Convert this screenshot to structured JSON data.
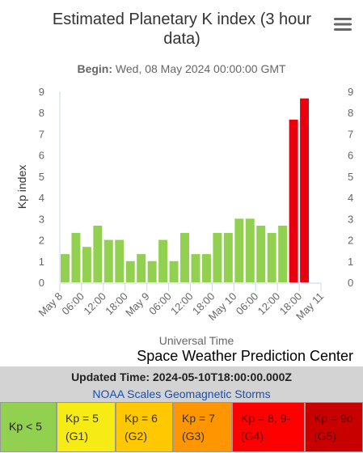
{
  "chart_data": {
    "type": "bar",
    "title": "Estimated Planetary K index (3 hour data)",
    "subtitle_label": "Begin:",
    "subtitle": "Wed, 08 May 2024 00:00:00 GMT",
    "y_label": "Kp index",
    "x_label": "Universal Time",
    "credit": "Space Weather Prediction Center",
    "x": [
      0,
      3,
      6,
      9,
      12,
      15,
      18,
      21,
      24,
      27,
      30,
      33,
      36,
      39,
      42,
      45,
      48,
      51,
      54,
      57,
      60,
      63,
      66
    ],
    "bar_width": 3,
    "values": [
      1.33,
      2.33,
      1.67,
      2.67,
      2.0,
      2.0,
      1.0,
      1.33,
      1.0,
      2.0,
      1.0,
      2.33,
      1.33,
      1.33,
      2.33,
      2.33,
      3.0,
      3.0,
      2.67,
      2.33,
      2.67,
      7.67,
      8.67
    ],
    "colors": [
      "#92d050",
      "#92d050",
      "#92d050",
      "#92d050",
      "#92d050",
      "#92d050",
      "#92d050",
      "#92d050",
      "#92d050",
      "#92d050",
      "#92d050",
      "#92d050",
      "#92d050",
      "#92d050",
      "#92d050",
      "#92d050",
      "#92d050",
      "#92d050",
      "#92d050",
      "#92d050",
      "#92d050",
      "#e8000f",
      "#e8000f"
    ],
    "xlim": [
      0,
      72
    ],
    "xticks": [
      {
        "value": 0,
        "label": "May 8"
      },
      {
        "value": 6,
        "label": "06:00"
      },
      {
        "value": 12,
        "label": "12:00"
      },
      {
        "value": 18,
        "label": "18:00"
      },
      {
        "value": 24,
        "label": "May 9"
      },
      {
        "value": 30,
        "label": "06:00"
      },
      {
        "value": 36,
        "label": "12:00"
      },
      {
        "value": 42,
        "label": "18:00"
      },
      {
        "value": 48,
        "label": "May 10"
      },
      {
        "value": 54,
        "label": "06:00"
      },
      {
        "value": 60,
        "label": "12:00"
      },
      {
        "value": 66,
        "label": "18:00"
      },
      {
        "value": 72,
        "label": "May 11"
      }
    ],
    "ylim": [
      0,
      9
    ],
    "yticks": [
      0,
      1,
      2,
      3,
      4,
      5,
      6,
      7,
      8,
      9
    ],
    "y2lim": [
      0,
      9
    ],
    "y2ticks": [
      0,
      1,
      2,
      3,
      4,
      5,
      6,
      7,
      8,
      9
    ],
    "grid": false
  },
  "updated": "Updated Time: 2024-05-10T18:00:00.000Z",
  "link": "NOAA Scales Geomagnetic Storms",
  "scale_legend": [
    {
      "label": "Kp < 5",
      "color": "#92d050"
    },
    {
      "label": "Kp = 5",
      "level": "(G1)",
      "color": "#f6eb14"
    },
    {
      "label": "Kp = 6",
      "level": "(G2)",
      "color": "#ffc800"
    },
    {
      "label": "Kp = 7",
      "level": "(G3)",
      "color": "#ff9600"
    },
    {
      "label": "Kp = 8, 9-",
      "level": "(G4)",
      "color": "#ff0000"
    },
    {
      "label": "Kp = 9o",
      "level": "(G5)",
      "color": "#c80000"
    }
  ]
}
